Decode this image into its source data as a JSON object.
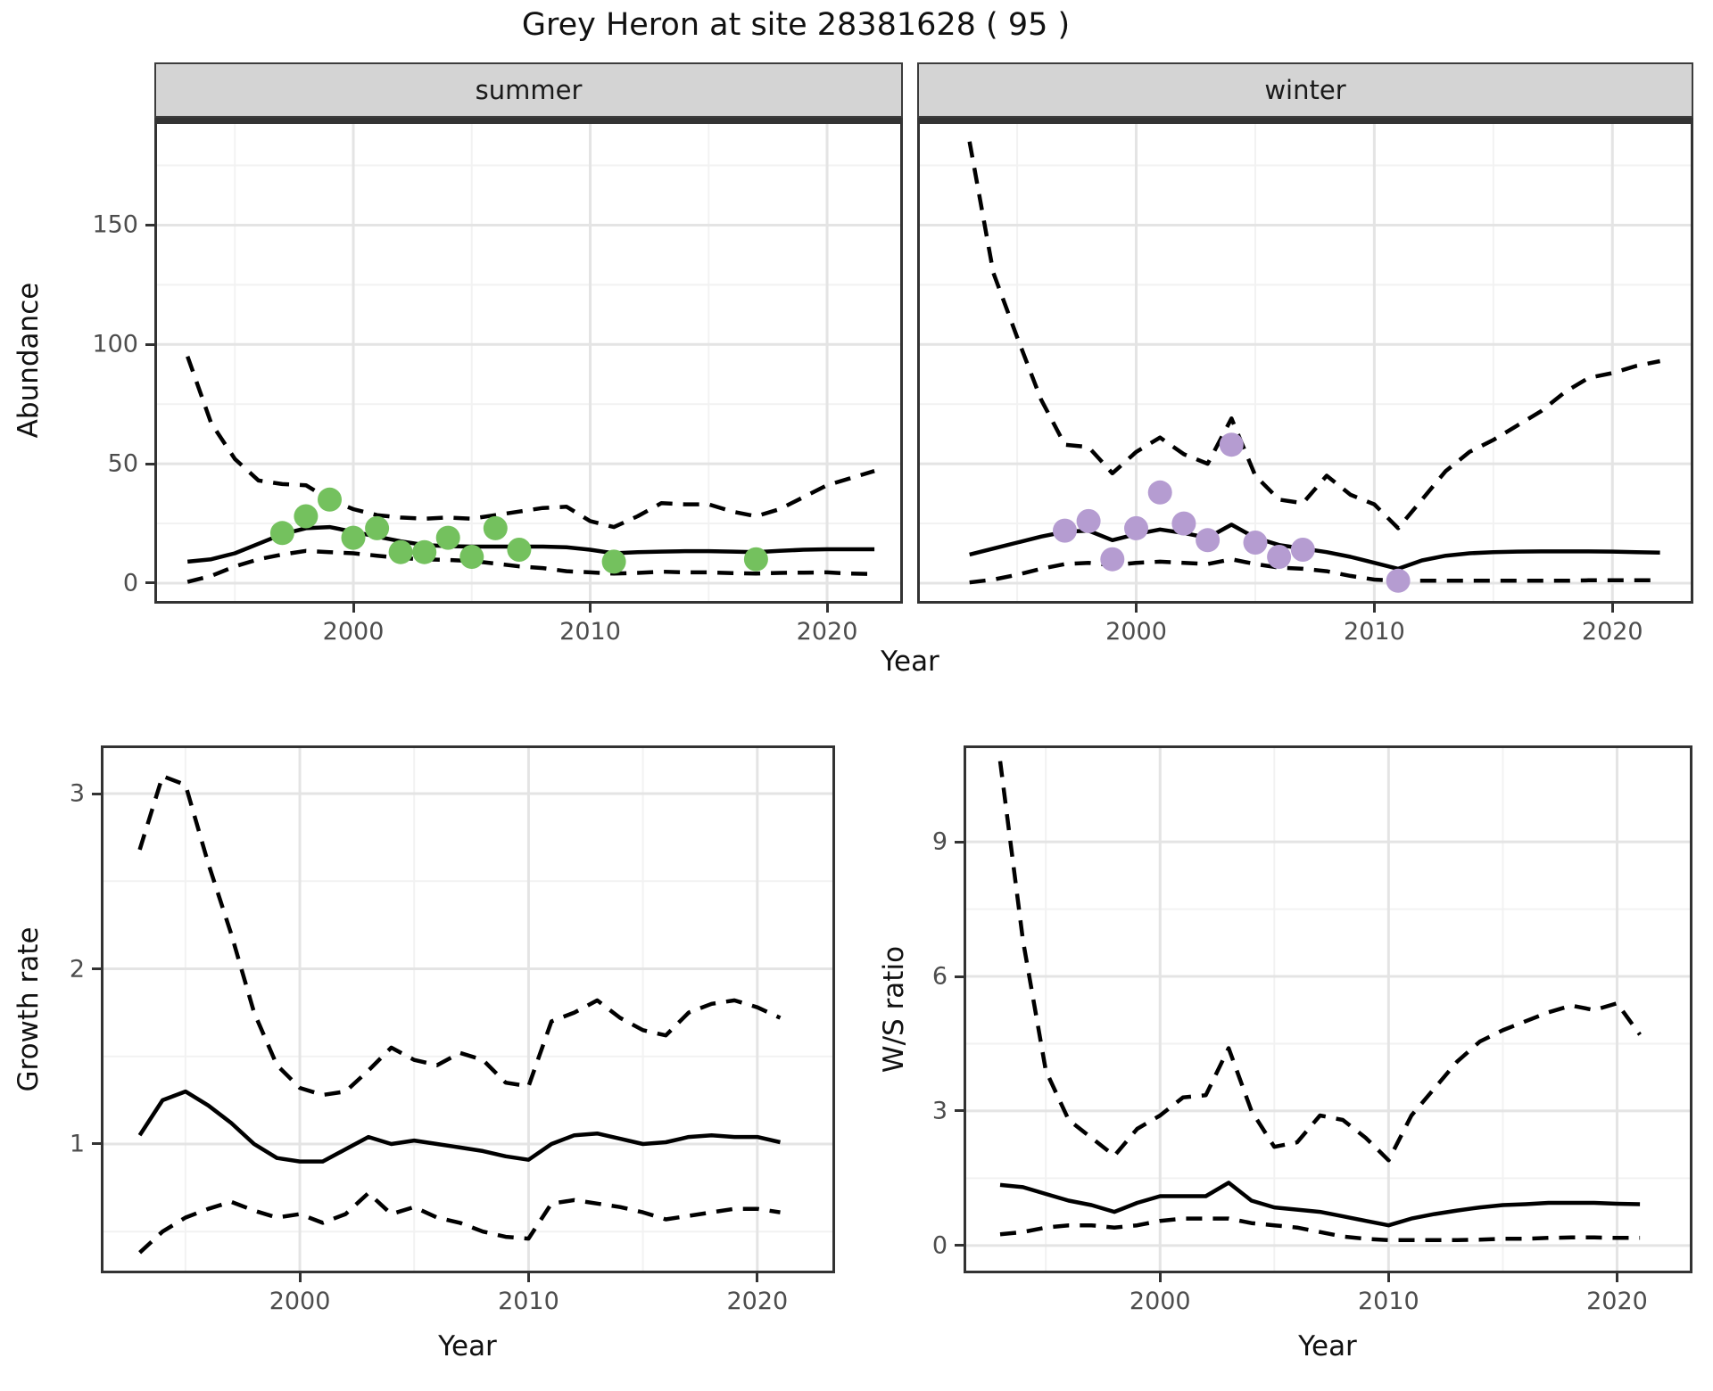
{
  "title": "Grey Heron at site 28381628 ( 95 )",
  "facets": {
    "summer": "summer",
    "winter": "winter"
  },
  "axes": {
    "abundance_label": "Abundance",
    "growth_label": "Growth rate",
    "ws_label": "W/S ratio",
    "year_label": "Year"
  },
  "colors": {
    "summer_points": "#74c15e",
    "winter_points": "#b59cd1",
    "line": "#000000",
    "strip_bg": "#d4d4d4",
    "grid_major": "#e4e4e4",
    "grid_minor": "#f2f2f2",
    "border": "#333333",
    "tick_text": "#4d4d4d"
  },
  "chart_data": [
    {
      "id": "summer-abundance",
      "type": "line",
      "facet_label": "summer",
      "xlabel": "Year",
      "ylabel": "Abundance",
      "xlim": [
        1991.6,
        2023.2
      ],
      "ylim": [
        -8.6,
        195
      ],
      "xticks": [
        2000,
        2010,
        2020
      ],
      "xtick_labels": [
        "2000",
        "2010",
        "2020"
      ],
      "xminor": [
        1995,
        2005,
        2015
      ],
      "yticks": [
        0,
        50,
        100,
        150
      ],
      "ytick_labels": [
        "0",
        "50",
        "100",
        "150"
      ],
      "yminor": [
        25,
        75,
        125,
        175
      ],
      "years": [
        1993,
        1994,
        1995,
        1996,
        1997,
        1998,
        1999,
        2000,
        2001,
        2002,
        2003,
        2004,
        2005,
        2006,
        2007,
        2008,
        2009,
        2010,
        2011,
        2012,
        2013,
        2014,
        2015,
        2016,
        2017,
        2018,
        2019,
        2020,
        2021,
        2022
      ],
      "series": [
        {
          "name": "upper 95% CI",
          "style": "dashed",
          "values": [
            95,
            67,
            52,
            43,
            41.5,
            41,
            35,
            31,
            28.5,
            27.5,
            27,
            27.5,
            27,
            28.5,
            30,
            31.5,
            32,
            26,
            23.5,
            28,
            33.5,
            33,
            33,
            30,
            28,
            31,
            36,
            41,
            44,
            47
          ]
        },
        {
          "name": "modelled median",
          "style": "solid",
          "values": [
            9,
            10,
            12.5,
            16.5,
            20.5,
            23,
            23.5,
            21.5,
            19.5,
            17.5,
            16,
            15.5,
            15.3,
            15.3,
            15.3,
            15.3,
            15,
            14,
            12.5,
            13,
            13.2,
            13.4,
            13.4,
            13.2,
            13,
            13.5,
            14,
            14.2,
            14.2,
            14.2
          ]
        },
        {
          "name": "lower 95% CI",
          "style": "dashed",
          "values": [
            0.5,
            3,
            7,
            10,
            12,
            13.5,
            13,
            12.5,
            11.5,
            10.5,
            10,
            9.7,
            9.3,
            8.2,
            7,
            6.3,
            5,
            4.5,
            4,
            4.3,
            4.8,
            4.5,
            4.5,
            4.2,
            4,
            4.3,
            4.4,
            4.5,
            4,
            3.8
          ]
        }
      ],
      "points": {
        "name": "observed summer counts",
        "color_key": "summer_points",
        "x": [
          1997,
          1998,
          1999,
          2000,
          2001,
          2002,
          2003,
          2004,
          2005,
          2006,
          2007,
          2011,
          2017
        ],
        "y": [
          21,
          28,
          35,
          19,
          23,
          13,
          13,
          19,
          11,
          23,
          14,
          9,
          10
        ]
      }
    },
    {
      "id": "winter-abundance",
      "type": "line",
      "facet_label": "winter",
      "xlabel": "Year",
      "ylabel": "Abundance",
      "xlim": [
        1990.8,
        2023.4
      ],
      "ylim": [
        -8.6,
        195
      ],
      "xticks": [
        2000,
        2010,
        2020
      ],
      "xtick_labels": [
        "2000",
        "2010",
        "2020"
      ],
      "xminor": [
        1995,
        2005,
        2015
      ],
      "yticks": [
        0,
        50,
        100,
        150
      ],
      "ytick_labels": [
        "0",
        "50",
        "100",
        "150"
      ],
      "yminor": [
        25,
        75,
        125,
        175
      ],
      "years": [
        1993,
        1994,
        1995,
        1996,
        1997,
        1998,
        1999,
        2000,
        2001,
        2002,
        2003,
        2004,
        2005,
        2006,
        2007,
        2008,
        2009,
        2010,
        2011,
        2012,
        2013,
        2014,
        2015,
        2016,
        2017,
        2018,
        2019,
        2020,
        2021,
        2022
      ],
      "series": [
        {
          "name": "upper 95% CI",
          "style": "dashed",
          "values": [
            185,
            130,
            103,
            77,
            58,
            57,
            46,
            55,
            61,
            54,
            50,
            69,
            45,
            35,
            33.5,
            45,
            37,
            33,
            23,
            35,
            47,
            55,
            60,
            66,
            72,
            80,
            86,
            88,
            91,
            93
          ]
        },
        {
          "name": "modelled median",
          "style": "solid",
          "values": [
            12,
            14.5,
            17,
            19.5,
            21.5,
            22,
            18,
            20.5,
            22.5,
            21,
            19,
            24.5,
            19,
            16,
            14.5,
            13,
            11,
            8.5,
            6,
            9.5,
            11.5,
            12.5,
            13,
            13.2,
            13.3,
            13.3,
            13.3,
            13.2,
            13,
            12.8
          ]
        },
        {
          "name": "lower 95% CI",
          "style": "dashed",
          "values": [
            0.3,
            1.5,
            3.5,
            6,
            8,
            8.5,
            7.5,
            8.5,
            9,
            8.5,
            8,
            10,
            8,
            6.5,
            6,
            5,
            3,
            1.5,
            1,
            1,
            1,
            1,
            1,
            1,
            1,
            1,
            1.2,
            1.2,
            1.2,
            1.2
          ]
        }
      ],
      "points": {
        "name": "observed winter counts",
        "color_key": "winter_points",
        "x": [
          1997,
          1998,
          1999,
          2000,
          2001,
          2002,
          2003,
          2004,
          2005,
          2006,
          2007,
          2011
        ],
        "y": [
          22,
          26,
          10,
          23,
          38,
          25,
          18,
          58,
          17,
          11,
          14,
          1
        ]
      }
    },
    {
      "id": "growth-rate",
      "type": "line",
      "facet_label": "",
      "xlabel": "Year",
      "ylabel": "Growth rate",
      "xlim": [
        1991.3,
        2023.4
      ],
      "ylim": [
        0.262,
        3.275
      ],
      "xticks": [
        2000,
        2010,
        2020
      ],
      "xtick_labels": [
        "2000",
        "2010",
        "2020"
      ],
      "xminor": [
        1995,
        2005,
        2015
      ],
      "yticks": [
        1,
        2,
        3
      ],
      "ytick_labels": [
        "1",
        "2",
        "3"
      ],
      "yminor": [
        0.5,
        1.5,
        2.5
      ],
      "years": [
        1993,
        1994,
        1995,
        1996,
        1997,
        1998,
        1999,
        2000,
        2001,
        2002,
        2003,
        2004,
        2005,
        2006,
        2007,
        2008,
        2009,
        2010,
        2011,
        2012,
        2013,
        2014,
        2015,
        2016,
        2017,
        2018,
        2019,
        2020,
        2021
      ],
      "series": [
        {
          "name": "upper 95% CI",
          "style": "dashed",
          "values": [
            2.68,
            3.1,
            3.05,
            2.6,
            2.2,
            1.75,
            1.45,
            1.32,
            1.28,
            1.3,
            1.42,
            1.55,
            1.48,
            1.45,
            1.52,
            1.48,
            1.35,
            1.33,
            1.7,
            1.75,
            1.82,
            1.72,
            1.65,
            1.62,
            1.75,
            1.8,
            1.82,
            1.78,
            1.72
          ]
        },
        {
          "name": "modelled median",
          "style": "solid",
          "values": [
            1.05,
            1.25,
            1.3,
            1.22,
            1.12,
            1.0,
            0.92,
            0.9,
            0.9,
            0.97,
            1.04,
            1.0,
            1.02,
            1.0,
            0.98,
            0.96,
            0.93,
            0.91,
            1.0,
            1.05,
            1.06,
            1.03,
            1.0,
            1.01,
            1.04,
            1.05,
            1.04,
            1.04,
            1.01
          ]
        },
        {
          "name": "lower 95% CI",
          "style": "dashed",
          "values": [
            0.38,
            0.5,
            0.58,
            0.63,
            0.67,
            0.62,
            0.58,
            0.6,
            0.55,
            0.6,
            0.72,
            0.6,
            0.64,
            0.58,
            0.55,
            0.5,
            0.47,
            0.46,
            0.66,
            0.68,
            0.66,
            0.64,
            0.61,
            0.57,
            0.59,
            0.61,
            0.63,
            0.63,
            0.61
          ]
        }
      ],
      "points": null
    },
    {
      "id": "ws-ratio",
      "type": "line",
      "facet_label": "",
      "xlabel": "Year",
      "ylabel": "W/S ratio",
      "xlim": [
        1991.4,
        2023.3
      ],
      "ylim": [
        -0.62,
        11.15
      ],
      "xticks": [
        2000,
        2010,
        2020
      ],
      "xtick_labels": [
        "2000",
        "2010",
        "2020"
      ],
      "xminor": [
        1995,
        2005,
        2015
      ],
      "yticks": [
        0,
        3,
        6,
        9
      ],
      "ytick_labels": [
        "0",
        "3",
        "6",
        "9"
      ],
      "yminor": [
        1.5,
        4.5,
        7.5
      ],
      "years": [
        1993,
        1994,
        1995,
        1996,
        1997,
        1998,
        1999,
        2000,
        2001,
        2002,
        2003,
        2004,
        2005,
        2006,
        2007,
        2008,
        2009,
        2010,
        2011,
        2012,
        2013,
        2014,
        2015,
        2016,
        2017,
        2018,
        2019,
        2020,
        2021
      ],
      "series": [
        {
          "name": "upper 95% CI",
          "style": "dashed",
          "values": [
            10.8,
            6.8,
            3.9,
            2.8,
            2.4,
            2.0,
            2.6,
            2.9,
            3.3,
            3.35,
            4.4,
            3.0,
            2.2,
            2.3,
            2.9,
            2.8,
            2.4,
            1.9,
            2.9,
            3.5,
            4.1,
            4.55,
            4.8,
            5.0,
            5.2,
            5.35,
            5.25,
            5.4,
            4.7
          ]
        },
        {
          "name": "modelled median",
          "style": "solid",
          "values": [
            1.35,
            1.3,
            1.15,
            1.0,
            0.9,
            0.75,
            0.95,
            1.1,
            1.1,
            1.1,
            1.4,
            1.0,
            0.85,
            0.8,
            0.75,
            0.65,
            0.55,
            0.45,
            0.6,
            0.7,
            0.78,
            0.85,
            0.9,
            0.92,
            0.95,
            0.95,
            0.95,
            0.93,
            0.92
          ]
        },
        {
          "name": "lower 95% CI",
          "style": "dashed",
          "values": [
            0.25,
            0.3,
            0.4,
            0.45,
            0.45,
            0.4,
            0.45,
            0.55,
            0.6,
            0.6,
            0.6,
            0.5,
            0.45,
            0.4,
            0.3,
            0.2,
            0.15,
            0.12,
            0.12,
            0.12,
            0.12,
            0.13,
            0.15,
            0.15,
            0.17,
            0.18,
            0.18,
            0.17,
            0.17
          ]
        }
      ],
      "points": null
    }
  ]
}
